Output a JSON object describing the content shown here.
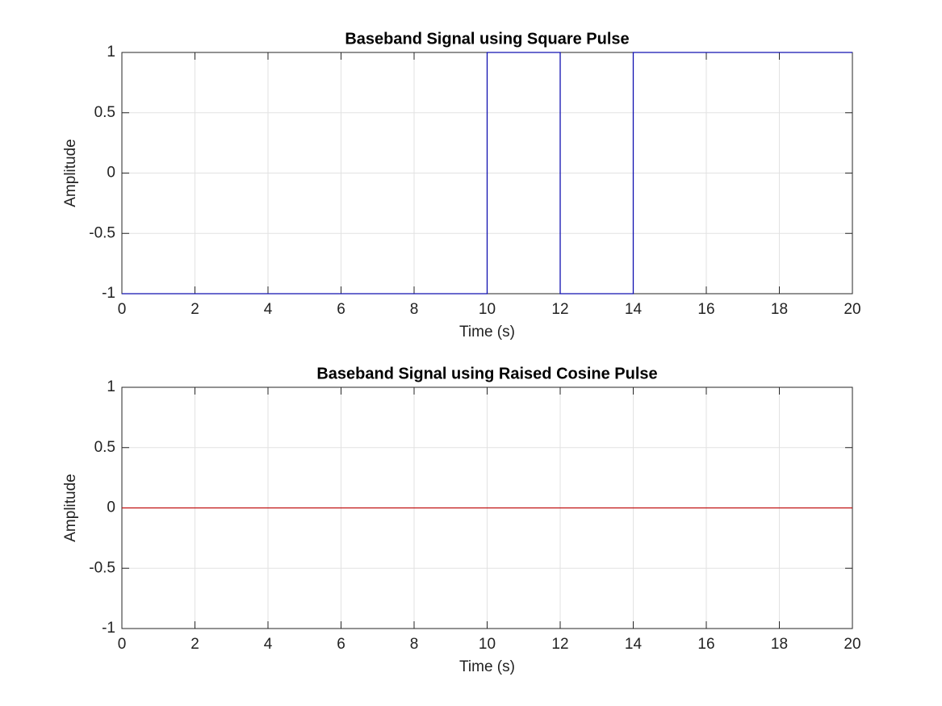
{
  "chart_data": [
    {
      "type": "line",
      "title": "Baseband Signal using Square Pulse",
      "xlabel": "Time (s)",
      "ylabel": "Amplitude",
      "x": [
        0,
        10,
        10,
        12,
        12,
        14,
        14,
        20
      ],
      "values": [
        -1,
        -1,
        1,
        1,
        -1,
        -1,
        1,
        1
      ],
      "color": "#1010b0",
      "xlim": [
        0,
        20
      ],
      "ylim": [
        -1,
        1
      ],
      "xticks": [
        0,
        2,
        4,
        6,
        8,
        10,
        12,
        14,
        16,
        18,
        20
      ],
      "yticks": [
        -1,
        -0.5,
        0,
        0.5,
        1
      ],
      "grid": true
    },
    {
      "type": "line",
      "title": "Baseband Signal using Raised Cosine Pulse",
      "xlabel": "Time (s)",
      "ylabel": "Amplitude",
      "x": [
        0,
        20
      ],
      "values": [
        0,
        0
      ],
      "color": "#c01010",
      "xlim": [
        0,
        20
      ],
      "ylim": [
        -1,
        1
      ],
      "xticks": [
        0,
        2,
        4,
        6,
        8,
        10,
        12,
        14,
        16,
        18,
        20
      ],
      "yticks": [
        -1,
        -0.5,
        0,
        0.5,
        1
      ],
      "grid": true
    }
  ]
}
